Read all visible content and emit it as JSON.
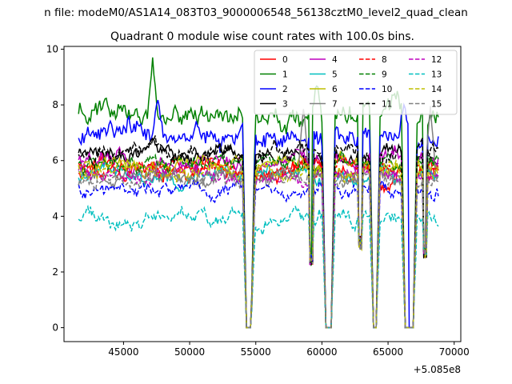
{
  "figure": {
    "suptitle": "n file: modeM0/AS1A14_083T03_9000006548_56138cztM0_level2_quad_clean",
    "title": "Quadrant 0 module wise count rates with 100.0s bins."
  },
  "chart_data": {
    "type": "line",
    "x_offset_label": "+5.085e8",
    "xlim": [
      40500,
      70500
    ],
    "ylim": [
      -0.5,
      10.1
    ],
    "x_ticks": [
      45000,
      50000,
      55000,
      60000,
      65000,
      70000
    ],
    "x_tick_labels": [
      "45000",
      "50000",
      "55000",
      "60000",
      "65000",
      "70000"
    ],
    "y_ticks": [
      0,
      2,
      4,
      6,
      8,
      10
    ],
    "y_tick_labels": [
      "0",
      "2",
      "4",
      "6",
      "8",
      "10"
    ],
    "grid": false,
    "legend": "top-right",
    "x_start": 41600,
    "x_end": 68800,
    "gaps": [
      [
        54300,
        54650
      ],
      [
        60300,
        60700
      ],
      [
        63900,
        64100
      ],
      [
        66300,
        66900
      ]
    ],
    "dips": [
      [
        59200,
        2.2
      ],
      [
        62900,
        2.8
      ],
      [
        67800,
        2.5
      ]
    ],
    "series": [
      {
        "name": "0",
        "level": 5.6,
        "noise": 0.35,
        "color": "#ff0000",
        "dash": "solid",
        "peaks": []
      },
      {
        "name": "1",
        "level": 7.6,
        "noise": 0.45,
        "color": "#008000",
        "dash": "solid",
        "peaks": [
          [
            47200,
            9.7
          ],
          [
            59600,
            8.8
          ]
        ]
      },
      {
        "name": "2",
        "level": 6.9,
        "noise": 0.45,
        "color": "#0000ff",
        "dash": "solid",
        "peaks": [
          [
            47600,
            8.3
          ],
          [
            66200,
            8.1
          ]
        ]
      },
      {
        "name": "3",
        "level": 6.2,
        "noise": 0.3,
        "color": "#000000",
        "dash": "solid",
        "peaks": []
      },
      {
        "name": "4",
        "level": 5.9,
        "noise": 0.35,
        "color": "#bf00bf",
        "dash": "solid",
        "peaks": []
      },
      {
        "name": "5",
        "level": 5.4,
        "noise": 0.3,
        "color": "#00bfbf",
        "dash": "solid",
        "peaks": []
      },
      {
        "name": "6",
        "level": 5.8,
        "noise": 0.3,
        "color": "#bfbf00",
        "dash": "solid",
        "peaks": []
      },
      {
        "name": "7",
        "level": 5.5,
        "noise": 0.3,
        "color": "#808080",
        "dash": "solid",
        "peaks": [
          [
            58600,
            8.0
          ],
          [
            68200,
            8.1
          ]
        ]
      },
      {
        "name": "8",
        "level": 5.7,
        "noise": 0.3,
        "color": "#ff0000",
        "dash": "dashed",
        "peaks": []
      },
      {
        "name": "9",
        "level": 5.9,
        "noise": 0.3,
        "color": "#008000",
        "dash": "dashed",
        "peaks": []
      },
      {
        "name": "10",
        "level": 5.0,
        "noise": 0.3,
        "color": "#0000ff",
        "dash": "dashed",
        "peaks": []
      },
      {
        "name": "11",
        "level": 6.3,
        "noise": 0.35,
        "color": "#000000",
        "dash": "dashed",
        "peaks": []
      },
      {
        "name": "12",
        "level": 5.5,
        "noise": 0.3,
        "color": "#bf00bf",
        "dash": "dashed",
        "peaks": []
      },
      {
        "name": "13",
        "level": 3.9,
        "noise": 0.3,
        "color": "#00bfbf",
        "dash": "dashed",
        "peaks": []
      },
      {
        "name": "14",
        "level": 5.6,
        "noise": 0.3,
        "color": "#bfbf00",
        "dash": "dashed",
        "peaks": []
      },
      {
        "name": "15",
        "level": 5.3,
        "noise": 0.3,
        "color": "#808080",
        "dash": "dashed",
        "peaks": []
      }
    ]
  }
}
